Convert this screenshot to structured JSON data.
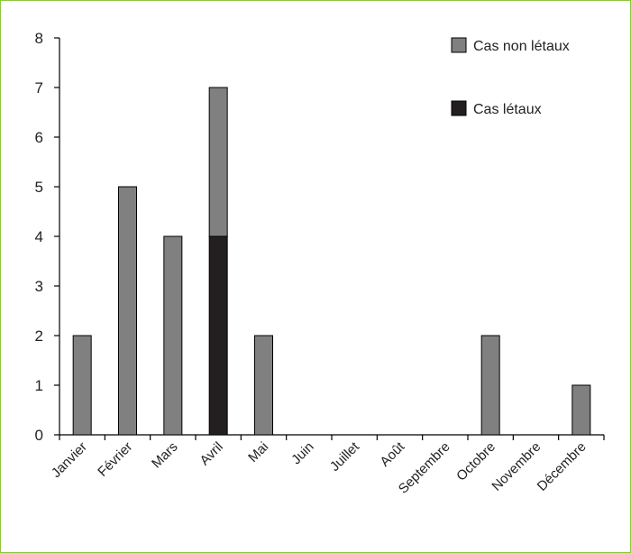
{
  "chart_data": {
    "type": "bar",
    "stacked": true,
    "categories": [
      "Janvier",
      "Février",
      "Mars",
      "Avril",
      "Mai",
      "Juin",
      "Juillet",
      "Août",
      "Septembre",
      "Octobre",
      "Novembre",
      "Décembre"
    ],
    "series": [
      {
        "name": "Cas létaux",
        "color": "#231f20",
        "values": [
          0,
          0,
          0,
          4,
          0,
          0,
          0,
          0,
          0,
          0,
          0,
          0
        ]
      },
      {
        "name": "Cas non létaux",
        "color": "#808080",
        "values": [
          2,
          5,
          4,
          3,
          2,
          0,
          0,
          0,
          0,
          2,
          0,
          1
        ]
      }
    ],
    "legend_order": [
      "Cas non létaux",
      "Cas létaux"
    ],
    "legend_position": "top-right",
    "yticks": [
      0,
      1,
      2,
      3,
      4,
      5,
      6,
      7,
      8
    ],
    "ylim": [
      0,
      8
    ],
    "grid": false,
    "title": "",
    "xlabel": "",
    "ylabel": ""
  }
}
